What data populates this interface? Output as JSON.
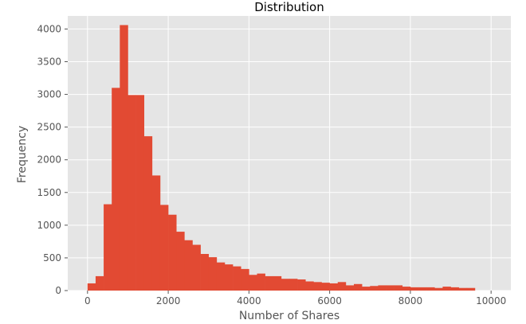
{
  "chart_data": {
    "type": "bar",
    "title": "Distribution",
    "xlabel": "Number of Shares",
    "ylabel": "Frequency",
    "xlim": [
      -490,
      10490
    ],
    "ylim": [
      0,
      4200
    ],
    "bin_width": 200,
    "bin_start": 0,
    "values": [
      110,
      220,
      1320,
      3100,
      4060,
      2990,
      2990,
      2360,
      1760,
      1310,
      1160,
      900,
      770,
      700,
      560,
      510,
      430,
      400,
      370,
      330,
      240,
      260,
      220,
      220,
      180,
      180,
      170,
      140,
      130,
      120,
      110,
      130,
      80,
      100,
      60,
      70,
      80,
      80,
      80,
      60,
      50,
      50,
      50,
      40,
      60,
      50,
      40,
      40
    ],
    "xticks": [
      0,
      2000,
      4000,
      6000,
      8000,
      10000
    ],
    "xtick_labels": [
      "0",
      "2000",
      "4000",
      "6000",
      "8000",
      "10000"
    ],
    "yticks": [
      0,
      500,
      1000,
      1500,
      2000,
      2500,
      3000,
      3500,
      4000
    ],
    "ytick_labels": [
      "0",
      "500",
      "1000",
      "1500",
      "2000",
      "2500",
      "3000",
      "3500",
      "4000"
    ],
    "grid": true,
    "colors": {
      "bar": "#E24A33",
      "background": "#E5E5E5",
      "grid": "#FFFFFF"
    }
  }
}
